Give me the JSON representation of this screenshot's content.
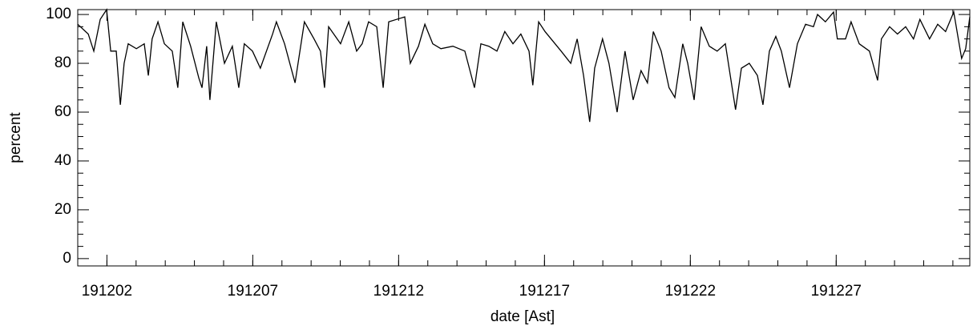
{
  "chart_data": {
    "type": "line",
    "xlabel": "date [Ast]",
    "ylabel": "percent",
    "x": [
      1.0,
      1.36,
      1.55,
      1.77,
      1.99,
      2.13,
      2.32,
      2.46,
      2.59,
      2.73,
      3.01,
      3.28,
      3.42,
      3.55,
      3.75,
      3.97,
      4.24,
      4.43,
      4.6,
      4.87,
      5.15,
      5.26,
      5.42,
      5.53,
      5.75,
      6.03,
      6.3,
      6.52,
      6.71,
      6.99,
      7.26,
      7.68,
      7.81,
      8.09,
      8.45,
      8.77,
      9.1,
      9.32,
      9.46,
      9.6,
      10.01,
      10.29,
      10.56,
      10.75,
      10.97,
      11.25,
      11.47,
      11.66,
      11.93,
      12.21,
      12.4,
      12.68,
      12.9,
      13.17,
      13.45,
      13.86,
      14.27,
      14.6,
      14.82,
      15.09,
      15.37,
      15.64,
      15.92,
      16.19,
      16.47,
      16.6,
      16.8,
      17.02,
      17.57,
      17.9,
      18.12,
      18.34,
      18.55,
      18.72,
      18.99,
      19.21,
      19.49,
      19.76,
      20.04,
      20.31,
      20.53,
      20.73,
      21.0,
      21.27,
      21.47,
      21.74,
      21.91,
      22.13,
      22.37,
      22.65,
      22.92,
      23.2,
      23.55,
      23.75,
      24.02,
      24.3,
      24.49,
      24.71,
      24.93,
      25.12,
      25.4,
      25.67,
      25.95,
      26.22,
      26.36,
      26.63,
      26.91,
      27.04,
      27.32,
      27.51,
      27.79,
      28.14,
      28.42,
      28.55,
      28.83,
      29.1,
      29.38,
      29.65,
      29.87,
      30.2,
      30.48,
      30.75,
      31.03,
      31.3,
      31.44,
      31.58
    ],
    "series": [
      {
        "color": "#000000",
        "values": [
          96,
          92,
          85,
          98,
          102,
          85,
          85,
          63,
          80,
          88,
          86,
          88,
          75,
          90,
          97,
          88,
          85,
          70,
          97,
          87,
          74,
          70,
          87,
          65,
          97,
          80,
          87,
          70,
          88,
          85,
          78,
          92,
          97,
          88,
          72,
          97,
          90,
          85,
          70,
          95,
          88,
          97,
          85,
          88,
          97,
          95,
          70,
          97,
          98,
          99,
          80,
          87,
          96,
          88,
          86,
          87,
          85,
          70,
          88,
          87,
          85,
          93,
          88,
          92,
          85,
          71,
          97,
          93,
          85,
          80,
          90,
          75,
          56,
          78,
          90,
          80,
          60,
          85,
          65,
          77,
          72,
          93,
          85,
          70,
          66,
          88,
          80,
          65,
          95,
          87,
          85,
          88,
          61,
          78,
          80,
          75,
          63,
          85,
          91,
          85,
          70,
          88,
          96,
          95,
          100,
          97,
          101,
          90,
          90,
          97,
          88,
          85,
          73,
          90,
          95,
          92,
          95,
          90,
          98,
          90,
          96,
          93,
          101,
          82,
          86,
          99
        ]
      }
    ],
    "xlim": [
      1,
      31.58
    ],
    "xticks": [
      {
        "value": 2,
        "label": "191202"
      },
      {
        "value": 7,
        "label": "191207"
      },
      {
        "value": 12,
        "label": "191212"
      },
      {
        "value": 17,
        "label": "191217"
      },
      {
        "value": 22,
        "label": "191222"
      },
      {
        "value": 27,
        "label": "191227"
      }
    ],
    "xminor_ticks": [
      1,
      2,
      3,
      4,
      5,
      6,
      7,
      8,
      9,
      10,
      11,
      12,
      13,
      14,
      15,
      16,
      17,
      18,
      19,
      20,
      21,
      22,
      23,
      24,
      25,
      26,
      27,
      28,
      29,
      30,
      31
    ],
    "ylim": [
      -3,
      102
    ],
    "yticks": [
      0,
      20,
      40,
      60,
      80,
      100
    ],
    "yminor_ticks": [
      5,
      10,
      15,
      25,
      30,
      35,
      45,
      50,
      55,
      65,
      70,
      75,
      85,
      90,
      95
    ]
  }
}
